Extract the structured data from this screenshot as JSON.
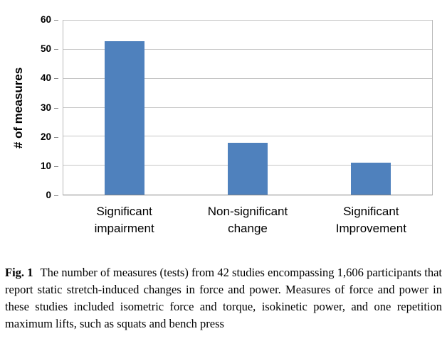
{
  "chart_data": {
    "type": "bar",
    "categories": [
      "Significant\nimpairment",
      "Non-significant\nchange",
      "Significant\nImprovement"
    ],
    "values": [
      53,
      18,
      11
    ],
    "title": "",
    "xlabel": "",
    "ylabel": "# of measures",
    "ylim": [
      0,
      60
    ],
    "ytick_step": 10,
    "grid": true,
    "legend": "none",
    "bar_color": "#4f81bd"
  },
  "caption": {
    "label": "Fig. 1",
    "text": "The number of measures (tests) from 42 studies encompassing 1,606 participants that report static stretch-induced changes in force and power. Measures of force and power in these studies included isometric force and torque, isokinetic power, and one repetition maximum lifts, such as squats and bench press"
  }
}
